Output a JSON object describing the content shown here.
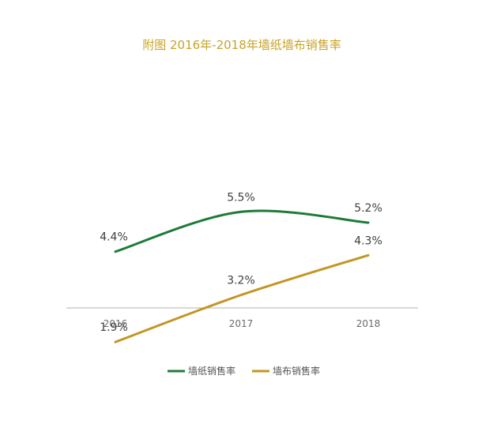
{
  "chart_data": {
    "type": "line",
    "title": "附图  2016年-2018年墙纸墙布销售率",
    "categories": [
      "2016",
      "2017",
      "2018"
    ],
    "series": [
      {
        "name": "墙纸销售率",
        "values": [
          4.4,
          5.5,
          5.2
        ],
        "labels": [
          "4.4%",
          "5.5%",
          "5.2%"
        ],
        "color": "#1e7b37"
      },
      {
        "name": "墙布销售率",
        "values": [
          1.9,
          3.2,
          4.3
        ],
        "labels": [
          "1.9%",
          "3.2%",
          "4.3%"
        ],
        "color": "#c29622"
      }
    ],
    "ylim": [
      0,
      6
    ],
    "grid": false,
    "legend_position": "bottom-center",
    "axis_color": "#b0b0b0"
  }
}
